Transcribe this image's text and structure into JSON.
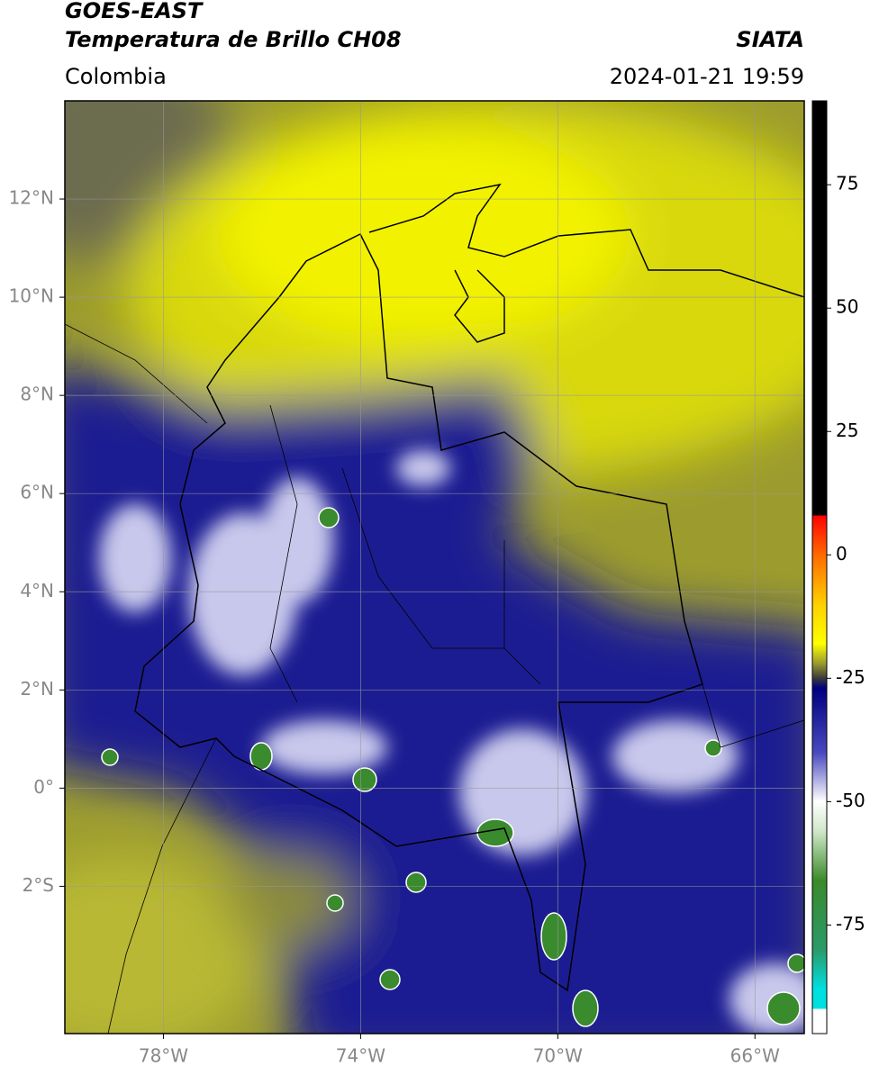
{
  "header": {
    "title": "GOES-EAST",
    "subtitle": "Temperatura de Brillo CH08",
    "source": "SIATA",
    "region": "Colombia",
    "timestamp": "2024-01-21 19:59"
  },
  "map": {
    "type": "map",
    "xlim": [
      -80,
      -65
    ],
    "ylim": [
      -5,
      14
    ],
    "grid": true,
    "xticks": [
      {
        "value": -78,
        "label": "78°W"
      },
      {
        "value": -74,
        "label": "74°W"
      },
      {
        "value": -70,
        "label": "70°W"
      },
      {
        "value": -66,
        "label": "66°W"
      }
    ],
    "yticks": [
      {
        "value": 12,
        "label": "12°N"
      },
      {
        "value": 10,
        "label": "10°N"
      },
      {
        "value": 8,
        "label": "8°N"
      },
      {
        "value": 6,
        "label": "6°N"
      },
      {
        "value": 4,
        "label": "4°N"
      },
      {
        "value": 2,
        "label": "2°N"
      },
      {
        "value": 0,
        "label": "0°"
      },
      {
        "value": -2,
        "label": "2°S"
      }
    ]
  },
  "colorbar": {
    "lim": [
      -97,
      92
    ],
    "ticks": [
      75,
      50,
      25,
      0,
      -25,
      -50,
      -75
    ],
    "stops": [
      {
        "value": 92,
        "color": "#000000"
      },
      {
        "value": 8,
        "color": "#000000"
      },
      {
        "value": 8,
        "color": "#ff0000"
      },
      {
        "value": 0,
        "color": "#ff6a00"
      },
      {
        "value": -10,
        "color": "#ffd000"
      },
      {
        "value": -18,
        "color": "#ffff00"
      },
      {
        "value": -22,
        "color": "#9a9a30"
      },
      {
        "value": -25,
        "color": "#3a3a3a"
      },
      {
        "value": -27,
        "color": "#000080"
      },
      {
        "value": -40,
        "color": "#4848c0"
      },
      {
        "value": -50,
        "color": "#ffffff"
      },
      {
        "value": -56,
        "color": "#cfe8c8"
      },
      {
        "value": -66,
        "color": "#3a8a2a"
      },
      {
        "value": -80,
        "color": "#2a9a6a"
      },
      {
        "value": -88,
        "color": "#00e0e0"
      },
      {
        "value": -92,
        "color": "#00e0e0"
      },
      {
        "value": -92,
        "color": "#ffffff"
      },
      {
        "value": -97,
        "color": "#ffffff"
      }
    ]
  }
}
